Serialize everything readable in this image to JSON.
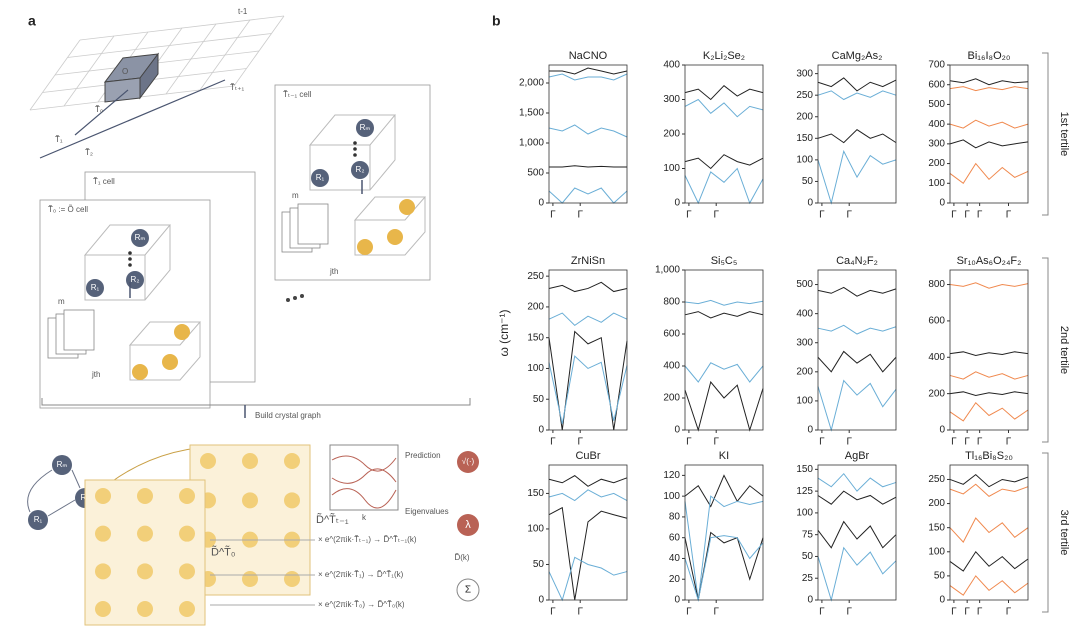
{
  "panel_a": {
    "label": "a",
    "lattice_labels": [
      "t-1",
      "T̃ₜ₊₁",
      "O",
      "T̃₀",
      "T̃₁",
      "T̃₂"
    ],
    "cells": [
      "T̃ₜ₋₁ cell",
      "T̃₁ cell",
      "T̃₀ := Õ cell"
    ],
    "nodes": [
      "Rₘ",
      "R₁",
      "R₂"
    ],
    "m": "m",
    "jth": "jth",
    "build": "Build crystal graph",
    "matrices": [
      "D̃^T̃ₜ₋₁",
      "D̃^T̃₀"
    ],
    "phases": [
      "× e^(2πik·T̃ₜ₋₁) → D̃^T̃ₜ₋₁(k)",
      "× e^(2πik·T̃₁) → D̃^T̃₁(k)",
      "× e^(2πik·T̃₀) → D̃^T̃₀(k)"
    ],
    "dk": "D̃(k)",
    "sum": "Σ",
    "prediction": "Prediction",
    "eigenvalues": "Eigenvalues",
    "lambda": "λ",
    "sqrt": "√(·)",
    "kbar": "k"
  },
  "panel_b": {
    "label": "b",
    "ylabel": "ω (cm⁻¹)",
    "tertiles": [
      "1st tertile",
      "2nd tertile",
      "3rd tertile"
    ]
  },
  "chart_data": [
    {
      "type": "line",
      "title": "NaCNO",
      "xlim": [
        0,
        1
      ],
      "ylim": [
        0,
        2300
      ],
      "yticks": [
        0,
        500,
        {
          "value": 1000,
          "label": "1,000"
        },
        {
          "value": 1500,
          "label": "1,500"
        },
        {
          "value": 2000,
          "label": "2,000"
        }
      ],
      "xticks": [
        {
          "value": 0.05,
          "label": "Γ"
        },
        {
          "value": 0.4,
          "label": "Γ"
        }
      ],
      "x": [
        0,
        0.17,
        0.33,
        0.5,
        0.67,
        0.83,
        1
      ],
      "series": [
        {
          "color": "#222222",
          "values": [
            2200,
            2200,
            2150,
            2250,
            2200,
            2150,
            2200
          ]
        },
        {
          "color": "#6aaed6",
          "values": [
            2100,
            2150,
            2050,
            2100,
            2100,
            2050,
            2150
          ]
        },
        {
          "color": "#6aaed6",
          "values": [
            1250,
            1200,
            1300,
            1150,
            1250,
            1200,
            1100
          ]
        },
        {
          "color": "#222222",
          "values": [
            600,
            600,
            620,
            600,
            610,
            600,
            600
          ]
        },
        {
          "color": "#6aaed6",
          "values": [
            200,
            0,
            250,
            150,
            250,
            0,
            200
          ]
        }
      ]
    },
    {
      "type": "line",
      "title": "K₂Li₂Se₂",
      "xlim": [
        0,
        1
      ],
      "ylim": [
        0,
        400
      ],
      "yticks": [
        0,
        100,
        200,
        300,
        400
      ],
      "xticks": [
        {
          "value": 0.05,
          "label": "Γ"
        },
        {
          "value": 0.4,
          "label": "Γ"
        }
      ],
      "x": [
        0,
        0.17,
        0.33,
        0.5,
        0.67,
        0.83,
        1
      ],
      "series": [
        {
          "color": "#222222",
          "values": [
            320,
            330,
            300,
            340,
            310,
            330,
            320
          ]
        },
        {
          "color": "#6aaed6",
          "values": [
            280,
            300,
            260,
            290,
            250,
            280,
            270
          ]
        },
        {
          "color": "#222222",
          "values": [
            120,
            130,
            100,
            140,
            120,
            110,
            130
          ]
        },
        {
          "color": "#6aaed6",
          "values": [
            80,
            0,
            90,
            60,
            100,
            0,
            70
          ]
        }
      ]
    },
    {
      "type": "line",
      "title": "CaMg₂As₂",
      "xlim": [
        0,
        1
      ],
      "ylim": [
        0,
        320
      ],
      "yticks": [
        0,
        50,
        100,
        150,
        200,
        250,
        300
      ],
      "xticks": [
        {
          "value": 0.05,
          "label": "Γ"
        },
        {
          "value": 0.4,
          "label": "Γ"
        }
      ],
      "x": [
        0,
        0.17,
        0.33,
        0.5,
        0.67,
        0.83,
        1
      ],
      "series": [
        {
          "color": "#222222",
          "values": [
            280,
            270,
            290,
            260,
            280,
            270,
            285
          ]
        },
        {
          "color": "#6aaed6",
          "values": [
            250,
            260,
            240,
            255,
            245,
            260,
            250
          ]
        },
        {
          "color": "#222222",
          "values": [
            150,
            160,
            140,
            170,
            150,
            160,
            140
          ]
        },
        {
          "color": "#6aaed6",
          "values": [
            100,
            0,
            120,
            60,
            110,
            90,
            100
          ]
        }
      ]
    },
    {
      "type": "line",
      "title": "Bi₁₆I₈O₂₀",
      "xlim": [
        0,
        1
      ],
      "ylim": [
        0,
        700
      ],
      "yticks": [
        0,
        100,
        200,
        300,
        400,
        500,
        600,
        700
      ],
      "xticks": [
        {
          "value": 0.05,
          "label": "Γ"
        },
        {
          "value": 0.22,
          "label": "Γ"
        },
        {
          "value": 0.38,
          "label": "Γ"
        },
        {
          "value": 0.75,
          "label": "Γ"
        }
      ],
      "x": [
        0,
        0.17,
        0.33,
        0.5,
        0.67,
        0.83,
        1
      ],
      "series": [
        {
          "color": "#222222",
          "values": [
            620,
            610,
            630,
            600,
            620,
            610,
            615
          ]
        },
        {
          "color": "#f0894e",
          "values": [
            580,
            590,
            570,
            585,
            575,
            590,
            580
          ]
        },
        {
          "color": "#f0894e",
          "values": [
            400,
            380,
            420,
            390,
            410,
            380,
            400
          ]
        },
        {
          "color": "#222222",
          "values": [
            300,
            320,
            280,
            310,
            290,
            300,
            310
          ]
        },
        {
          "color": "#f0894e",
          "values": [
            150,
            100,
            200,
            120,
            180,
            130,
            160
          ]
        }
      ]
    },
    {
      "type": "line",
      "title": "ZrNiSn",
      "xlim": [
        0,
        1
      ],
      "ylim": [
        0,
        260
      ],
      "yticks": [
        0,
        50,
        100,
        150,
        200,
        250
      ],
      "xticks": [
        {
          "value": 0.05,
          "label": "Γ"
        },
        {
          "value": 0.4,
          "label": "Γ"
        }
      ],
      "x": [
        0,
        0.17,
        0.33,
        0.5,
        0.67,
        0.83,
        1
      ],
      "series": [
        {
          "color": "#222222",
          "values": [
            230,
            235,
            225,
            230,
            240,
            225,
            230
          ]
        },
        {
          "color": "#6aaed6",
          "values": [
            180,
            190,
            170,
            185,
            175,
            190,
            180
          ]
        },
        {
          "color": "#222222",
          "values": [
            150,
            0,
            160,
            140,
            150,
            0,
            145
          ]
        },
        {
          "color": "#6aaed6",
          "values": [
            110,
            10,
            120,
            100,
            110,
            15,
            105
          ]
        }
      ]
    },
    {
      "type": "line",
      "title": "Si₅C₅",
      "xlim": [
        0,
        1
      ],
      "ylim": [
        0,
        1000
      ],
      "yticks": [
        0,
        200,
        400,
        600,
        800,
        {
          "value": 1000,
          "label": "1,000"
        }
      ],
      "xticks": [
        {
          "value": 0.05,
          "label": "Γ"
        },
        {
          "value": 0.4,
          "label": "Γ"
        }
      ],
      "x": [
        0,
        0.17,
        0.33,
        0.5,
        0.67,
        0.83,
        1
      ],
      "series": [
        {
          "color": "#6aaed6",
          "values": [
            800,
            790,
            810,
            780,
            800,
            790,
            805
          ]
        },
        {
          "color": "#222222",
          "values": [
            720,
            740,
            700,
            730,
            710,
            740,
            720
          ]
        },
        {
          "color": "#6aaed6",
          "values": [
            400,
            300,
            420,
            380,
            410,
            300,
            400
          ]
        },
        {
          "color": "#222222",
          "values": [
            250,
            0,
            300,
            200,
            280,
            0,
            260
          ]
        }
      ]
    },
    {
      "type": "line",
      "title": "Ca₄N₂F₂",
      "xlim": [
        0,
        1
      ],
      "ylim": [
        0,
        550
      ],
      "yticks": [
        0,
        100,
        200,
        300,
        400,
        500
      ],
      "xticks": [
        {
          "value": 0.05,
          "label": "Γ"
        },
        {
          "value": 0.4,
          "label": "Γ"
        }
      ],
      "x": [
        0,
        0.17,
        0.33,
        0.5,
        0.67,
        0.83,
        1
      ],
      "series": [
        {
          "color": "#222222",
          "values": [
            480,
            470,
            490,
            460,
            480,
            470,
            485
          ]
        },
        {
          "color": "#6aaed6",
          "values": [
            350,
            340,
            360,
            330,
            350,
            340,
            355
          ]
        },
        {
          "color": "#222222",
          "values": [
            250,
            200,
            270,
            230,
            260,
            200,
            250
          ]
        },
        {
          "color": "#6aaed6",
          "values": [
            150,
            0,
            170,
            120,
            160,
            80,
            140
          ]
        }
      ]
    },
    {
      "type": "line",
      "title": "Sr₁₀As₆O₂₄F₂",
      "xlim": [
        0,
        1
      ],
      "ylim": [
        0,
        880
      ],
      "yticks": [
        0,
        200,
        400,
        600,
        800
      ],
      "xticks": [
        {
          "value": 0.05,
          "label": "Γ"
        },
        {
          "value": 0.22,
          "label": "Γ"
        },
        {
          "value": 0.38,
          "label": "Γ"
        },
        {
          "value": 0.75,
          "label": "Γ"
        }
      ],
      "x": [
        0,
        0.17,
        0.33,
        0.5,
        0.67,
        0.83,
        1
      ],
      "series": [
        {
          "color": "#f0894e",
          "values": [
            800,
            790,
            810,
            780,
            800,
            790,
            805
          ]
        },
        {
          "color": "#222222",
          "values": [
            420,
            430,
            410,
            425,
            415,
            430,
            420
          ]
        },
        {
          "color": "#f0894e",
          "values": [
            300,
            280,
            320,
            290,
            310,
            280,
            300
          ]
        },
        {
          "color": "#222222",
          "values": [
            200,
            210,
            190,
            205,
            195,
            210,
            200
          ]
        },
        {
          "color": "#f0894e",
          "values": [
            100,
            50,
            150,
            80,
            120,
            60,
            110
          ]
        }
      ]
    },
    {
      "type": "line",
      "title": "CuBr",
      "xlim": [
        0,
        1
      ],
      "ylim": [
        0,
        190
      ],
      "yticks": [
        0,
        50,
        100,
        150
      ],
      "xticks": [
        {
          "value": 0.05,
          "label": "Γ"
        },
        {
          "value": 0.4,
          "label": "Γ"
        }
      ],
      "x": [
        0,
        0.17,
        0.33,
        0.5,
        0.67,
        0.83,
        1
      ],
      "series": [
        {
          "color": "#222222",
          "values": [
            170,
            165,
            175,
            160,
            170,
            165,
            172
          ]
        },
        {
          "color": "#6aaed6",
          "values": [
            145,
            150,
            140,
            155,
            145,
            150,
            140
          ]
        },
        {
          "color": "#222222",
          "values": [
            120,
            130,
            0,
            110,
            125,
            120,
            115
          ]
        },
        {
          "color": "#6aaed6",
          "values": [
            40,
            0,
            60,
            50,
            45,
            35,
            40
          ]
        }
      ]
    },
    {
      "type": "line",
      "title": "KI",
      "xlim": [
        0,
        1
      ],
      "ylim": [
        0,
        130
      ],
      "yticks": [
        0,
        20,
        40,
        60,
        80,
        100,
        120
      ],
      "xticks": [
        {
          "value": 0.05,
          "label": "Γ"
        },
        {
          "value": 0.4,
          "label": "Γ"
        }
      ],
      "x": [
        0,
        0.17,
        0.33,
        0.5,
        0.67,
        0.83,
        1
      ],
      "series": [
        {
          "color": "#222222",
          "values": [
            100,
            110,
            90,
            120,
            95,
            110,
            100
          ]
        },
        {
          "color": "#6aaed6",
          "values": [
            95,
            0,
            100,
            90,
            95,
            92,
            95
          ]
        },
        {
          "color": "#222222",
          "values": [
            60,
            0,
            65,
            55,
            60,
            20,
            60
          ]
        },
        {
          "color": "#6aaed6",
          "values": [
            40,
            0,
            60,
            62,
            60,
            40,
            55
          ]
        }
      ]
    },
    {
      "type": "line",
      "title": "AgBr",
      "xlim": [
        0,
        1
      ],
      "ylim": [
        0,
        155
      ],
      "yticks": [
        0,
        25,
        50,
        75,
        100,
        125,
        150
      ],
      "xticks": [
        {
          "value": 0.05,
          "label": "Γ"
        },
        {
          "value": 0.4,
          "label": "Γ"
        }
      ],
      "x": [
        0,
        0.17,
        0.33,
        0.5,
        0.67,
        0.83,
        1
      ],
      "series": [
        {
          "color": "#6aaed6",
          "values": [
            140,
            130,
            145,
            125,
            140,
            130,
            135
          ]
        },
        {
          "color": "#222222",
          "values": [
            120,
            110,
            125,
            115,
            120,
            110,
            118
          ]
        },
        {
          "color": "#222222",
          "values": [
            80,
            60,
            90,
            70,
            85,
            60,
            75
          ]
        },
        {
          "color": "#6aaed6",
          "values": [
            50,
            0,
            60,
            40,
            55,
            30,
            45
          ]
        }
      ]
    },
    {
      "type": "line",
      "title": "Tl₁₆Bi₈S₂₀",
      "xlim": [
        0,
        1
      ],
      "ylim": [
        0,
        280
      ],
      "yticks": [
        0,
        50,
        100,
        150,
        200,
        250
      ],
      "xticks": [
        {
          "value": 0.05,
          "label": "Γ"
        },
        {
          "value": 0.22,
          "label": "Γ"
        },
        {
          "value": 0.38,
          "label": "Γ"
        },
        {
          "value": 0.75,
          "label": "Γ"
        }
      ],
      "x": [
        0,
        0.17,
        0.33,
        0.5,
        0.67,
        0.83,
        1
      ],
      "series": [
        {
          "color": "#222222",
          "values": [
            250,
            240,
            260,
            235,
            250,
            245,
            255
          ]
        },
        {
          "color": "#f0894e",
          "values": [
            230,
            220,
            240,
            215,
            230,
            225,
            235
          ]
        },
        {
          "color": "#f0894e",
          "values": [
            150,
            120,
            170,
            140,
            160,
            130,
            150
          ]
        },
        {
          "color": "#222222",
          "values": [
            80,
            60,
            100,
            70,
            90,
            65,
            85
          ]
        },
        {
          "color": "#f0894e",
          "values": [
            30,
            10,
            50,
            20,
            40,
            15,
            35
          ]
        }
      ]
    }
  ]
}
